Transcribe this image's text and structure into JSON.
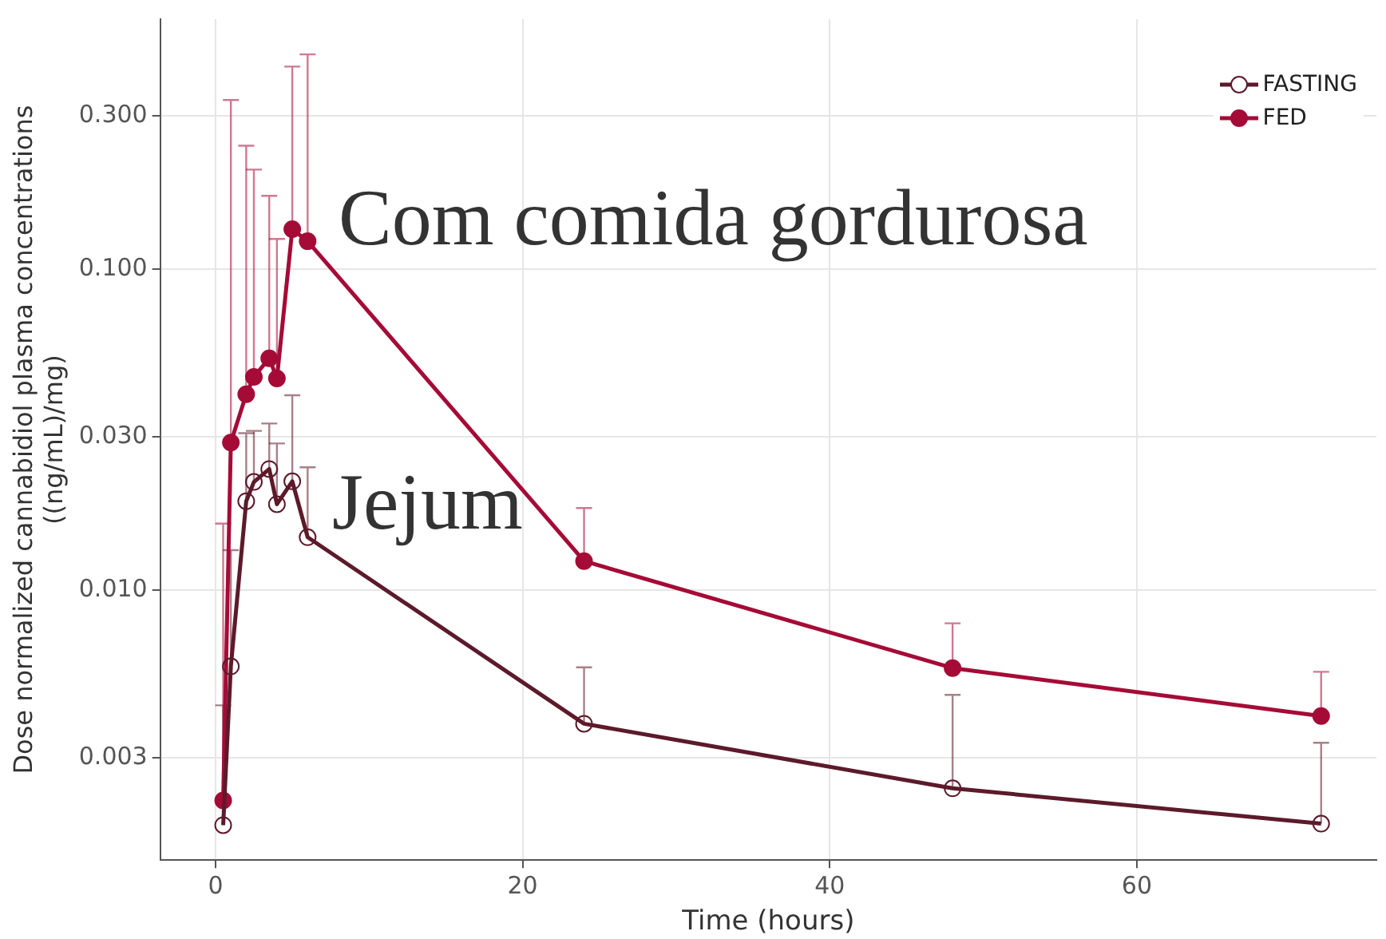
{
  "chart_data": {
    "type": "line",
    "xlabel": "Time (hours)",
    "ylabel": "Dose normalized cannabidiol plasma concentrations\n((ng/mL)/mg)",
    "x": [
      0.5,
      1,
      2,
      2.5,
      3.5,
      4,
      5,
      6,
      24,
      48,
      72
    ],
    "series": [
      {
        "name": "FASTING",
        "color": "#5c1a2a",
        "values": [
          0.00185,
          0.00578,
          0.0189,
          0.0217,
          0.0238,
          0.0185,
          0.0218,
          0.0146,
          0.00383,
          0.00241,
          0.00187
        ],
        "errors": [
          [
            0.00185,
            0.00437
          ],
          [
            0.00578,
            0.0133
          ],
          [
            0.0189,
            0.0308
          ],
          [
            0.0217,
            0.0313
          ],
          [
            0.0238,
            0.033
          ],
          [
            0.0185,
            0.0286
          ],
          [
            0.0218,
            0.0404
          ],
          [
            0.0146,
            0.0241
          ],
          [
            0.00383,
            0.00574
          ],
          [
            0.00241,
            0.00471
          ],
          [
            0.00187,
            0.00334
          ]
        ]
      },
      {
        "name": "FED",
        "color": "#a50b37",
        "values": [
          0.00221,
          0.0288,
          0.0407,
          0.0461,
          0.0527,
          0.0456,
          0.133,
          0.122,
          0.0123,
          0.00571,
          0.00405
        ],
        "errors": [
          [
            0.00221,
            0.0161
          ],
          [
            0.0288,
            0.336
          ],
          [
            0.0407,
            0.242
          ],
          [
            0.0461,
            0.204
          ],
          [
            0.0527,
            0.169
          ],
          [
            0.0456,
            0.124
          ],
          [
            0.133,
            0.427
          ],
          [
            0.122,
            0.466
          ],
          [
            0.0123,
            0.018
          ],
          [
            0.00571,
            0.00787
          ],
          [
            0.00405,
            0.00556
          ]
        ]
      }
    ],
    "log": "y",
    "xlim": [
      -3.6,
      75.6
    ],
    "xticks": [
      0,
      20,
      40,
      60
    ],
    "ylim": [
      0.00144,
      0.6
    ],
    "yticks": [
      {
        "value": 0.003,
        "label": "0.003"
      },
      {
        "value": 0.01,
        "label": "0.010"
      },
      {
        "value": 0.03,
        "label": "0.030"
      },
      {
        "value": 0.1,
        "label": "0.100"
      },
      {
        "value": 0.3,
        "label": "0.300"
      }
    ],
    "grid": true,
    "legend": "top right",
    "marker": "circle",
    "line_style": "solid",
    "annotations": [
      "Com comida gordurosa",
      "Jejum"
    ]
  }
}
